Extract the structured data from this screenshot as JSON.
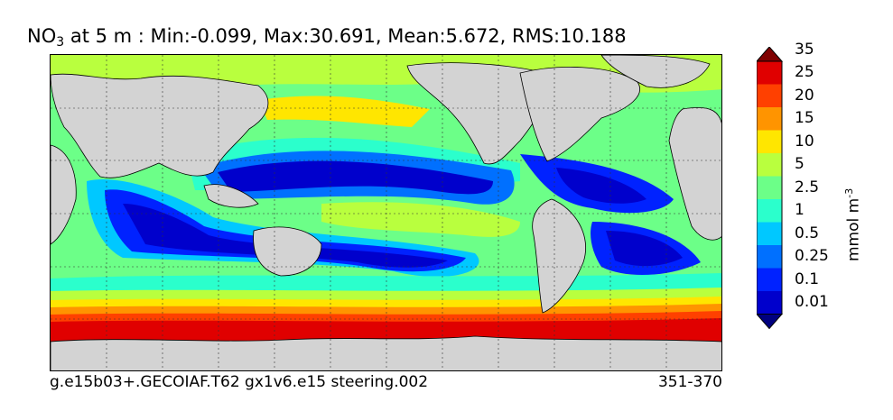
{
  "title": {
    "species": "NO",
    "species_sub": "3",
    "rest": " at 5 m : Min:-0.099, Max:30.691, Mean:5.672, RMS:10.188"
  },
  "footer": {
    "case": "g.e15b03+.GECOIAF.T62 gx1v6.e15 steering.002",
    "years": "351-370"
  },
  "colorbar": {
    "unit_text": "mmol m",
    "unit_exp": "-3",
    "levels": [
      "0.01",
      "0.1",
      "0.25",
      "0.5",
      "1",
      "2.5",
      "5",
      "10",
      "15",
      "20",
      "25",
      "35"
    ],
    "colors": [
      "#00007f",
      "#0000cc",
      "#0022ff",
      "#0070ff",
      "#00c8ff",
      "#2bffcc",
      "#6cff88",
      "#b9ff3e",
      "#ffe600",
      "#ff9400",
      "#ff4000",
      "#e00000",
      "#7f0000"
    ]
  },
  "map": {
    "land_color": "#d3d3d3",
    "grid": "dotted",
    "projection": "cylindrical"
  }
}
